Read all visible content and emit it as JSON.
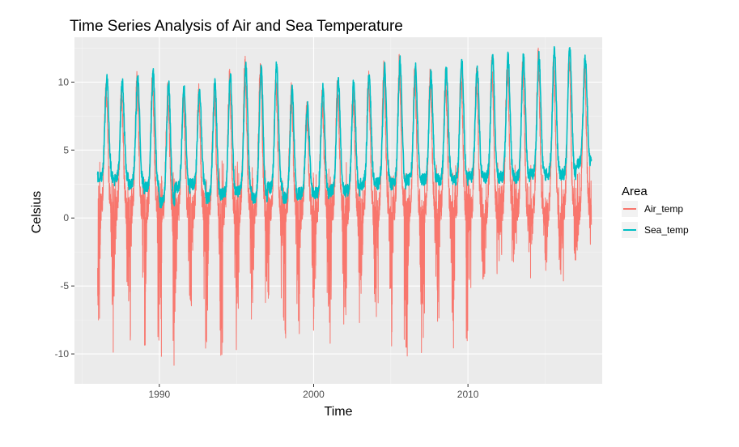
{
  "chart_data": {
    "type": "line",
    "title": "Time Series Analysis of Air and Sea Temperature",
    "xlabel": "Time",
    "ylabel": "Celsius",
    "xlim": [
      1984.5,
      2018.7
    ],
    "ylim": [
      -12.2,
      13.3
    ],
    "x_ticks": [
      1990,
      2000,
      2010
    ],
    "x_tick_labels": [
      "1990",
      "2000",
      "2010"
    ],
    "y_ticks": [
      -10,
      -5,
      0,
      5,
      10
    ],
    "y_tick_labels": [
      "-10",
      "-5",
      "0",
      "5",
      "10"
    ],
    "grid": true,
    "legend": {
      "title": "Area",
      "placement": "right"
    },
    "series": [
      {
        "name": "Air_temp",
        "color": "#F8766D",
        "x_start": 1986.0,
        "x_step": 0.5,
        "summer_peaks": [
          9.5,
          9.0,
          9.8,
          10.0,
          9.0,
          8.5,
          8.8,
          9.0,
          10.0,
          11.0,
          11.0,
          10.0,
          9.0,
          7.5,
          8.5,
          9.5,
          9.0,
          10.0,
          10.5,
          11.0,
          10.5,
          10.0,
          10.0,
          10.5,
          10.0,
          11.0,
          11.0,
          11.0,
          11.5,
          11.0,
          11.5,
          11.0
        ],
        "winter_troughs": [
          -8.0,
          -10.0,
          -10.0,
          -9.5,
          -11.0,
          -7.0,
          -6.5,
          -11.3,
          -10.5,
          -9.0,
          -6.5,
          -7.5,
          -10.0,
          -9.0,
          -7.5,
          -8.5,
          -8.0,
          -7.0,
          -7.5,
          -11.2,
          -10.0,
          -10.7,
          -8.0,
          -10.3,
          -5.5,
          -4.5,
          -3.5,
          -2.5,
          -4.0,
          -4.5,
          -5.2,
          -2.0
        ],
        "baseline_low": 0.5
      },
      {
        "name": "Sea_temp",
        "color": "#00BFC4",
        "x_start": 1986.0,
        "x_step": 0.5,
        "summer_peaks": [
          10.3,
          10.0,
          10.3,
          10.6,
          9.8,
          9.5,
          9.5,
          10.0,
          10.5,
          11.2,
          11.0,
          11.2,
          9.5,
          8.2,
          9.5,
          10.0,
          10.0,
          10.5,
          11.0,
          11.5,
          11.0,
          10.5,
          11.0,
          11.5,
          11.0,
          11.8,
          11.8,
          11.8,
          11.8,
          12.5,
          12.6,
          11.8
        ],
        "winter_troughs": [
          3.0,
          2.8,
          2.5,
          2.2,
          1.2,
          2.2,
          2.5,
          1.5,
          1.8,
          2.0,
          1.5,
          2.2,
          1.5,
          1.8,
          1.8,
          2.0,
          2.0,
          2.5,
          2.5,
          2.5,
          2.8,
          2.8,
          2.8,
          2.8,
          3.0,
          3.0,
          3.0,
          3.0,
          3.2,
          3.2,
          3.2,
          4.0
        ]
      }
    ]
  }
}
